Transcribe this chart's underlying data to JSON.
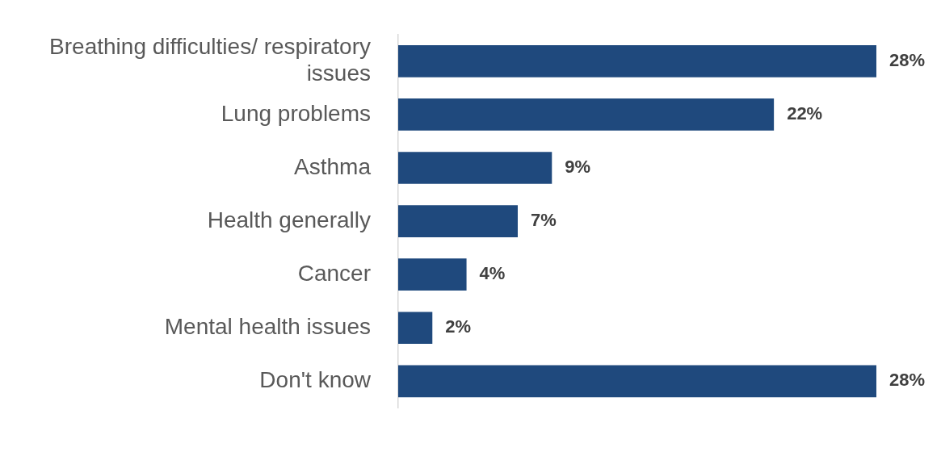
{
  "chart_data": {
    "type": "bar",
    "orientation": "horizontal",
    "categories": [
      "Breathing difficulties/ respiratory issues",
      "Lung problems",
      "Asthma",
      "Health generally",
      "Cancer",
      "Mental health issues",
      "Don't know"
    ],
    "values": [
      28,
      22,
      9,
      7,
      4,
      2,
      28
    ],
    "value_labels": [
      "28%",
      "22%",
      "9%",
      "7%",
      "4%",
      "2%",
      "28%"
    ],
    "color": "#1f497d"
  }
}
